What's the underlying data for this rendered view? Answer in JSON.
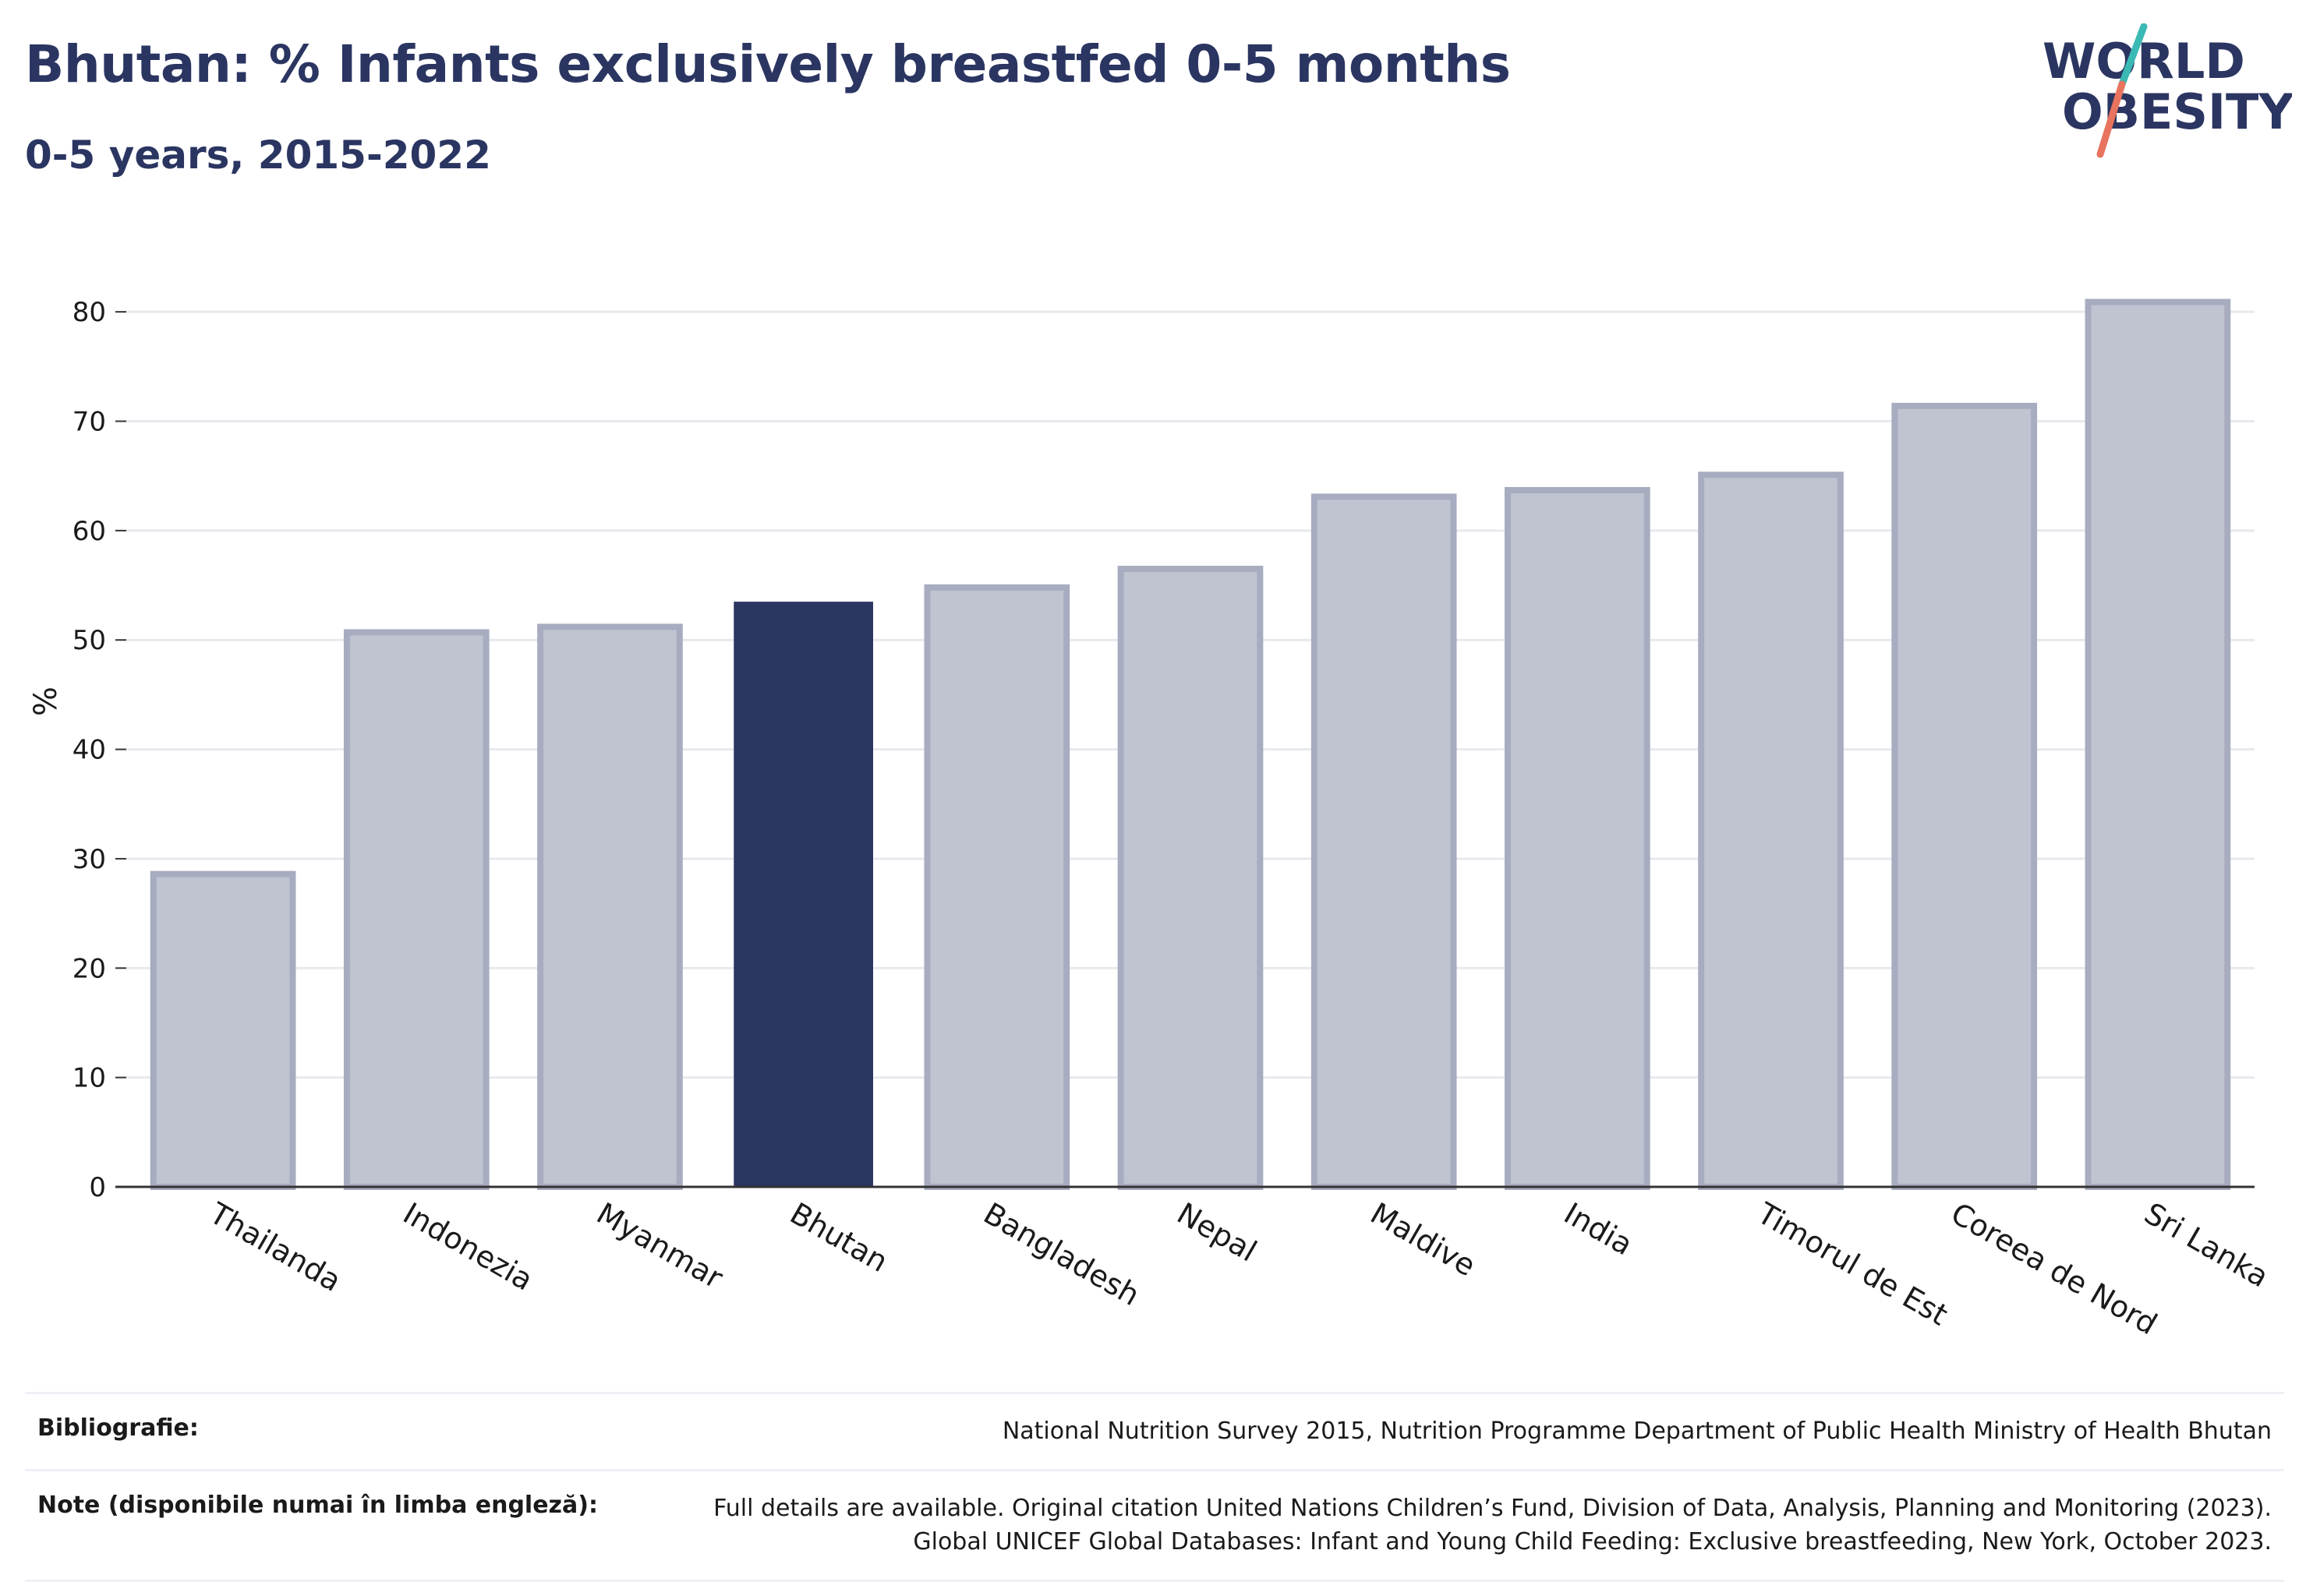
{
  "header": {
    "title": "Bhutan: % Infants exclusively breastfed 0-5 months",
    "subtitle": "0-5 years, 2015-2022"
  },
  "logo": {
    "line1": "WORLD",
    "line2": "OBESITY",
    "colors": {
      "text": "#2b3561",
      "slash_teal": "#3bb9b4",
      "slash_coral": "#e8735f"
    }
  },
  "colors": {
    "highlight_bar": "#2b3561",
    "other_bar_fill": "#c0c3d0",
    "other_bar_stroke": "#a7acc0",
    "grid": "#e8e9ee",
    "axis": "#333333"
  },
  "chart_data": {
    "type": "bar",
    "title": "Bhutan: % Infants exclusively breastfed 0-5 months",
    "subtitle": "0-5 years, 2015-2022",
    "xlabel": "",
    "ylabel": "%",
    "ylim": [
      0,
      85
    ],
    "yticks": [
      0,
      10,
      20,
      30,
      40,
      50,
      60,
      70,
      80
    ],
    "grid": true,
    "highlight": "Bhutan",
    "categories": [
      "Thailanda",
      "Indonezia",
      "Myanmar",
      "Bhutan",
      "Bangladesh",
      "Nepal",
      "Maldive",
      "India",
      "Timorul de Est",
      "Coreea de Nord",
      "Sri Lanka"
    ],
    "values": [
      28.6,
      50.7,
      51.2,
      53.5,
      54.8,
      56.5,
      63.1,
      63.7,
      65.1,
      71.4,
      80.9
    ]
  },
  "footer": {
    "rows": [
      {
        "key": "Bibliografie:",
        "value_lines": [
          "National Nutrition Survey 2015, Nutrition Programme Department of Public Health Ministry of Health Bhutan"
        ]
      },
      {
        "key": "Note (disponibile numai în limba engleză):",
        "value_lines": [
          "Full details are available. Original citation United Nations Children’s Fund, Division of Data, Analysis, Planning and Monitoring (2023).",
          "Global UNICEF Global Databases: Infant and Young Child Feeding: Exclusive breastfeeding, New York, October 2023."
        ]
      }
    ]
  }
}
